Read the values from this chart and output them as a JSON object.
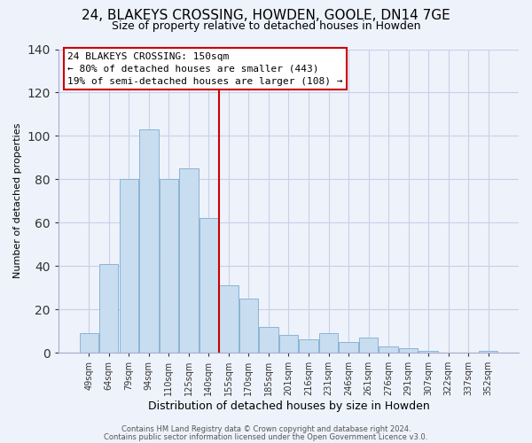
{
  "title": "24, BLAKEYS CROSSING, HOWDEN, GOOLE, DN14 7GE",
  "subtitle": "Size of property relative to detached houses in Howden",
  "xlabel": "Distribution of detached houses by size in Howden",
  "ylabel": "Number of detached properties",
  "bar_labels": [
    "49sqm",
    "64sqm",
    "79sqm",
    "94sqm",
    "110sqm",
    "125sqm",
    "140sqm",
    "155sqm",
    "170sqm",
    "185sqm",
    "201sqm",
    "216sqm",
    "231sqm",
    "246sqm",
    "261sqm",
    "276sqm",
    "291sqm",
    "307sqm",
    "322sqm",
    "337sqm",
    "352sqm"
  ],
  "bar_values": [
    9,
    41,
    80,
    103,
    80,
    85,
    62,
    31,
    25,
    12,
    8,
    6,
    9,
    5,
    7,
    3,
    2,
    1,
    0,
    0,
    1
  ],
  "bar_color": "#c8ddf0",
  "bar_edge_color": "#8ab4d4",
  "vline_index": 6.5,
  "vline_color": "#cc0000",
  "annotation_title": "24 BLAKEYS CROSSING: 150sqm",
  "annotation_line1": "← 80% of detached houses are smaller (443)",
  "annotation_line2": "19% of semi-detached houses are larger (108) →",
  "annotation_box_color": "#ffffff",
  "annotation_box_edge": "#cc0000",
  "ylim": [
    0,
    140
  ],
  "yticks": [
    0,
    20,
    40,
    60,
    80,
    100,
    120,
    140
  ],
  "footer1": "Contains HM Land Registry data © Crown copyright and database right 2024.",
  "footer2": "Contains public sector information licensed under the Open Government Licence v3.0.",
  "bg_color": "#eef2fb",
  "grid_color": "#c8d0e8",
  "title_fontsize": 11,
  "subtitle_fontsize": 9,
  "xlabel_fontsize": 9,
  "ylabel_fontsize": 8,
  "tick_fontsize": 7,
  "footer_fontsize": 6,
  "annot_fontsize": 8
}
